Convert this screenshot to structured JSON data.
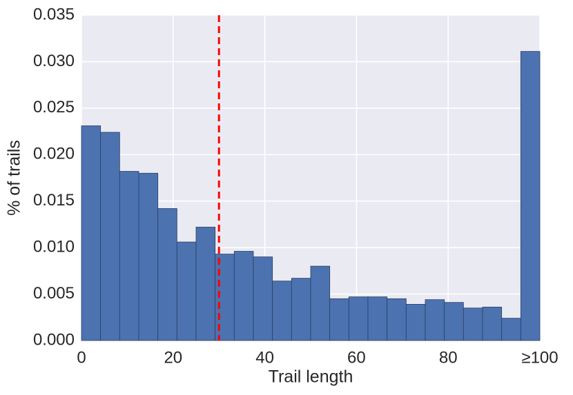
{
  "chart_data": {
    "type": "histogram",
    "xlabel": "Trail length",
    "ylabel": "% of trails",
    "bins": [
      0,
      4.1667,
      8.3333,
      12.5,
      16.6667,
      20.8333,
      25,
      29.1667,
      33.3333,
      37.5,
      41.6667,
      45.8333,
      50,
      54.1667,
      58.3333,
      62.5,
      66.6667,
      70.8333,
      75,
      79.1667,
      83.3333,
      87.5,
      91.6667,
      95.8333,
      100
    ],
    "counts": [
      0.0231,
      0.0224,
      0.0182,
      0.018,
      0.0142,
      0.0106,
      0.0122,
      0.0093,
      0.0096,
      0.009,
      0.0064,
      0.0067,
      0.008,
      0.0045,
      0.0047,
      0.0047,
      0.0045,
      0.0039,
      0.0044,
      0.0041,
      0.0035,
      0.0036,
      0.0024,
      0.0311
    ],
    "color": "#4c72b0",
    "xlim": [
      0,
      100
    ],
    "ylim": [
      0,
      0.035
    ],
    "xticks": [
      0,
      20,
      40,
      60,
      80,
      {
        "value": 100,
        "label": "≥100"
      }
    ],
    "yticks": [
      {
        "value": 0,
        "label": "0.000"
      },
      {
        "value": 0.005,
        "label": "0.005"
      },
      {
        "value": 0.01,
        "label": "0.010"
      },
      {
        "value": 0.015,
        "label": "0.015"
      },
      {
        "value": 0.02,
        "label": "0.020"
      },
      {
        "value": 0.025,
        "label": "0.025"
      },
      {
        "value": 0.03,
        "label": "0.030"
      },
      {
        "value": 0.035,
        "label": "0.035"
      }
    ],
    "grid": true,
    "vline": {
      "x": 30,
      "color": "#ff0000",
      "style": "dashed"
    }
  }
}
